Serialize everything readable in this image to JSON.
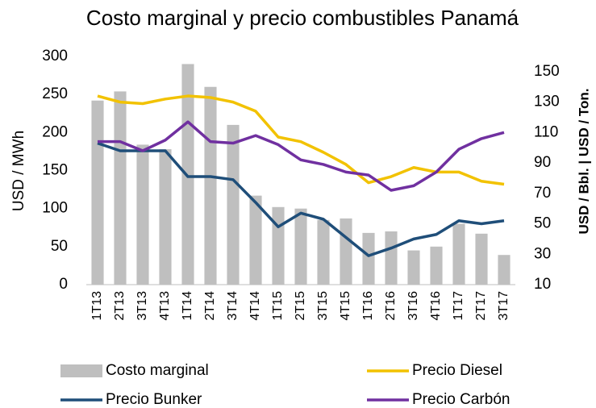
{
  "chart_data": {
    "type": "bar-line",
    "title": "Costo marginal y precio combustibles Panamá",
    "ylabel": "USD / MWh",
    "y2label": "USD / Bbl. | USD / Ton.",
    "categories": [
      "1T13",
      "2T13",
      "3T13",
      "4T13",
      "1T14",
      "2T14",
      "3T14",
      "4T14",
      "1T15",
      "2T15",
      "3T15",
      "4T15",
      "1T16",
      "2T16",
      "3T16",
      "4T16",
      "1T17",
      "2T17",
      "3T17"
    ],
    "series": [
      {
        "name": "Costo marginal",
        "type": "bar",
        "color": "#bfbfbf",
        "values": [
          242,
          254,
          184,
          178,
          290,
          260,
          210,
          117,
          102,
          100,
          85,
          87,
          68,
          70,
          45,
          50,
          80,
          67,
          39
        ]
      },
      {
        "name": "Precio Diesel",
        "type": "line",
        "axis": "y2",
        "color": "#f2c200",
        "values": [
          134,
          130,
          129,
          132,
          134,
          133,
          130,
          124,
          107,
          104,
          97,
          89,
          77,
          81,
          87,
          84,
          84,
          78,
          76
        ]
      },
      {
        "name": "Precio Bunker",
        "type": "line",
        "axis": "y2",
        "color": "#1f4e79",
        "values": [
          103,
          98,
          98,
          98,
          81,
          81,
          79,
          64,
          48,
          57,
          53,
          41,
          29,
          34,
          40,
          43,
          52,
          50,
          52
        ]
      },
      {
        "name": "Precio Carbón",
        "type": "line",
        "axis": "y2",
        "color": "#7030a0",
        "values": [
          104,
          104,
          98,
          105,
          117,
          104,
          103,
          108,
          102,
          92,
          89,
          84,
          82,
          72,
          75,
          84,
          99,
          106,
          110
        ]
      }
    ],
    "ylim": [
      0,
      300
    ],
    "yticks": [
      0,
      50,
      100,
      150,
      200,
      250,
      300
    ],
    "y2lim": [
      10,
      160
    ],
    "y2ticks": [
      10,
      30,
      50,
      70,
      90,
      110,
      130,
      150
    ]
  }
}
